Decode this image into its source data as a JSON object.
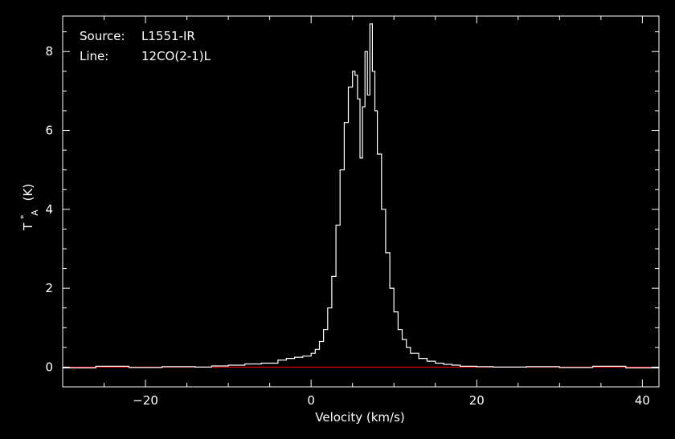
{
  "colors": {
    "background": "#000000",
    "axes": "#ffffff",
    "spectrum": "#ffffff",
    "baseline": "#ff0000"
  },
  "annotations": {
    "source_label": "Source:",
    "source_value": "L1551-IR",
    "line_label": "Line:",
    "line_value": "12CO(2-1)L"
  },
  "chart_data": {
    "type": "line",
    "step": true,
    "xlabel": "Velocity (km/s)",
    "ylabel_main": "T",
    "ylabel_super": "*",
    "ylabel_sub": "A",
    "ylabel_unit": "(K)",
    "xlim": [
      -30,
      42
    ],
    "ylim": [
      -0.5,
      8.9
    ],
    "xticks": [
      -20,
      0,
      20,
      40
    ],
    "xtick_labels": [
      "−20",
      "0",
      "20",
      "40"
    ],
    "yticks": [
      0,
      2,
      4,
      6,
      8
    ],
    "ytick_labels": [
      "0",
      "2",
      "4",
      "6",
      "8"
    ],
    "grid": false,
    "baseline_y": 0,
    "series": [
      {
        "x": [
          -30,
          -26,
          -22,
          -18,
          -14,
          -12,
          -10,
          -8,
          -6,
          -4,
          -3,
          -2,
          -1,
          0,
          0.5,
          1,
          1.5,
          2,
          2.5,
          3,
          3.5,
          4,
          4.5,
          5,
          5.3,
          5.6,
          5.9,
          6.2,
          6.5,
          6.8,
          7.1,
          7.4,
          7.7,
          8.0,
          8.5,
          9,
          9.5,
          10,
          10.5,
          11,
          11.5,
          12,
          13,
          14,
          15,
          16,
          17,
          18,
          20,
          22,
          26,
          30,
          34,
          38,
          42
        ],
        "y": [
          -0.02,
          0.02,
          -0.01,
          0.01,
          0.0,
          0.03,
          0.05,
          0.08,
          0.1,
          0.18,
          0.22,
          0.25,
          0.28,
          0.35,
          0.45,
          0.65,
          0.95,
          1.5,
          2.3,
          3.6,
          5.0,
          6.2,
          7.1,
          7.5,
          7.4,
          6.8,
          5.3,
          6.6,
          8.0,
          6.9,
          8.7,
          7.5,
          6.5,
          5.4,
          4.0,
          2.9,
          2.0,
          1.4,
          0.95,
          0.7,
          0.5,
          0.35,
          0.22,
          0.15,
          0.1,
          0.07,
          0.05,
          0.02,
          0.01,
          0.0,
          0.01,
          -0.01,
          0.02,
          -0.02,
          0.0
        ]
      }
    ]
  }
}
